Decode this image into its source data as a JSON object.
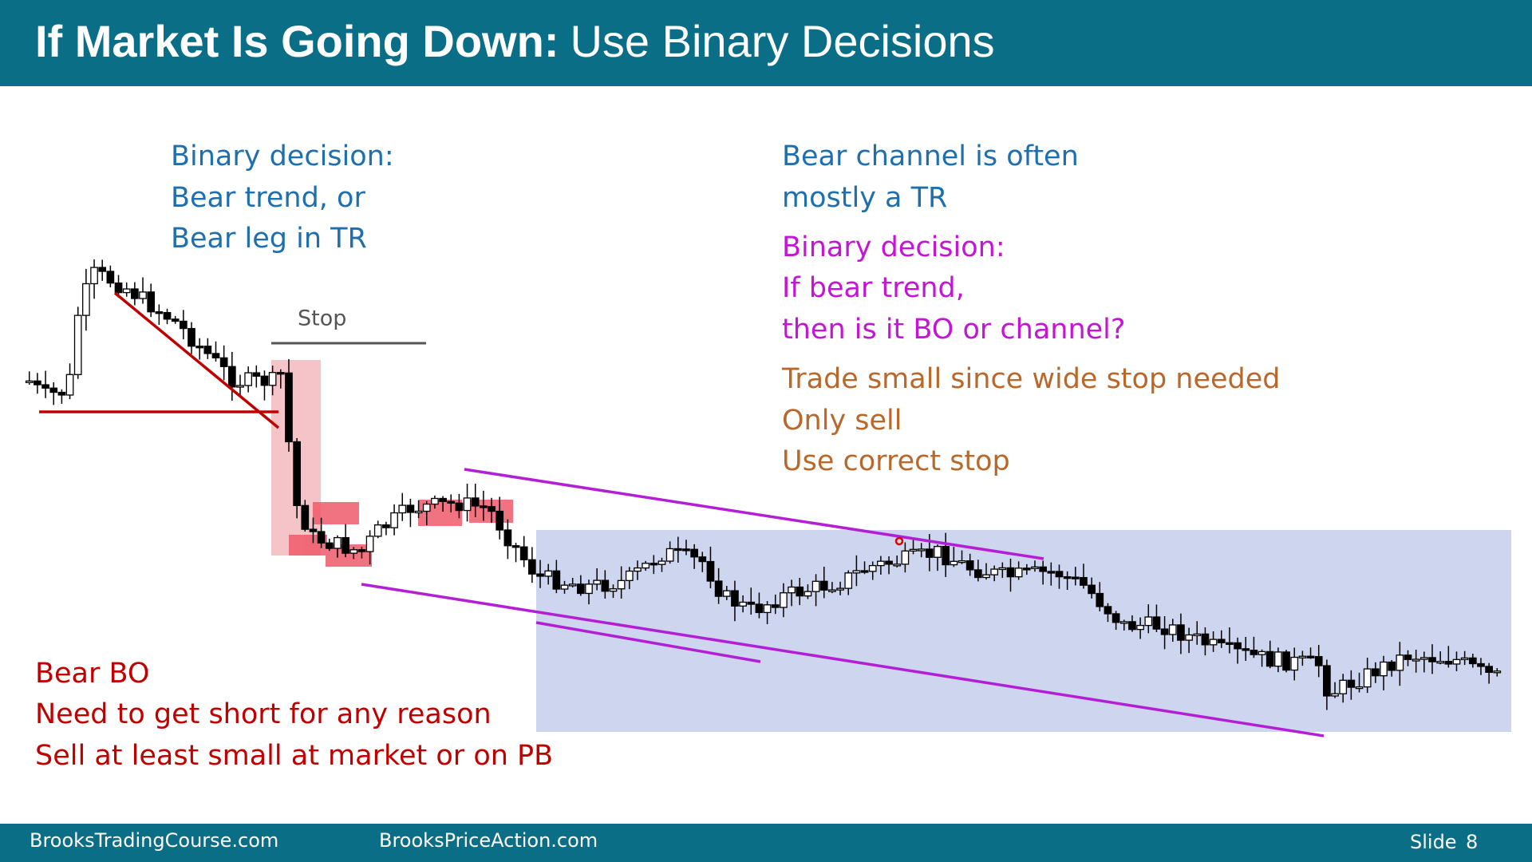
{
  "header": {
    "title_bold": "If Market Is Going Down:",
    "title_rest": "Use Binary Decisions"
  },
  "left_note": {
    "lines": [
      "Binary decision:",
      "Bear trend, or",
      "Bear leg in TR"
    ]
  },
  "stop_label": "Stop",
  "right_note": {
    "lines": [
      "Bear channel is often",
      "mostly a TR"
    ]
  },
  "binary_note": {
    "lines": [
      "Binary decision:",
      "If bear trend,",
      "then is it BO or channel?"
    ]
  },
  "trade_note": {
    "lines": [
      "Trade small since wide stop needed",
      "Only sell",
      "Use correct stop"
    ]
  },
  "bear_bo_note": {
    "lines": [
      "Bear BO",
      "Need to get short for any reason",
      "Sell at least small at market or on PB"
    ]
  },
  "footer": {
    "left": "BrooksTradingCourse.com",
    "middle": "BrooksPriceAction.com",
    "slide_label": "Slide",
    "slide_number": "8"
  }
}
